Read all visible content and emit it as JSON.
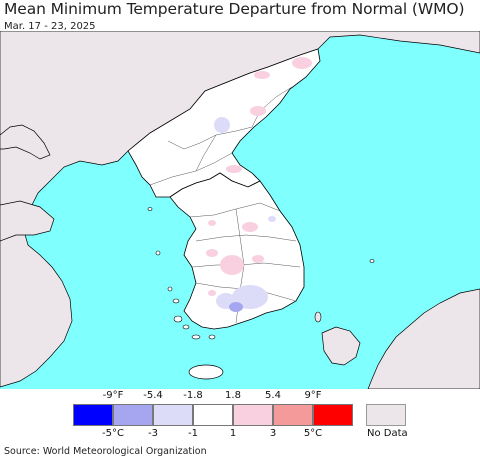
{
  "header": {
    "title": "Mean Minimum Temperature Departure from Normal (WMO)",
    "date_range": "Mar. 17 - 23, 2025"
  },
  "legend": {
    "fahrenheit_ticks": [
      "-9°F",
      "-5.4",
      "-1.8",
      "1.8",
      "5.4",
      "9°F"
    ],
    "celsius_ticks": [
      "-5°C",
      "-3",
      "-1",
      "1",
      "3",
      "5°C"
    ],
    "colors": [
      "#0000ff",
      "#a6a6f0",
      "#dcdcf8",
      "#ffffff",
      "#f8d0e0",
      "#f59a9a",
      "#ff0000"
    ],
    "no_data_label": "No Data",
    "no_data_color": "#ece6ea"
  },
  "map_colors": {
    "ocean": "#80ffff",
    "land_no_data": "#ece6ea",
    "land_data": "#ffffff",
    "border": "#000000"
  },
  "footer": {
    "source": "Source: World Meteorological Organization"
  }
}
